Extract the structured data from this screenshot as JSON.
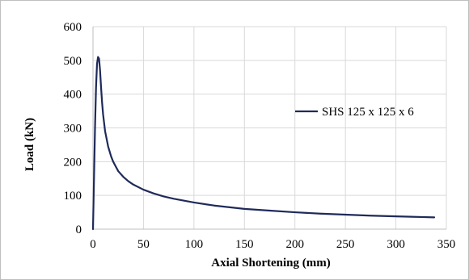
{
  "chart_data": {
    "type": "line",
    "title": "",
    "xlabel": "Axial Shortening (mm)",
    "ylabel": "Load (kN)",
    "xlim": [
      0,
      350
    ],
    "ylim": [
      0,
      600
    ],
    "x_ticks": [
      0,
      50,
      100,
      150,
      200,
      250,
      300,
      350
    ],
    "y_ticks": [
      0,
      100,
      200,
      300,
      400,
      500,
      600
    ],
    "x_tick_labels": [
      "0",
      "50",
      "100",
      "150",
      "200",
      "250",
      "300",
      "350"
    ],
    "y_tick_labels": [
      "0",
      "100",
      "200",
      "300",
      "400",
      "500",
      "600"
    ],
    "grid": true,
    "legend_position": "right",
    "series": [
      {
        "name": "SHS 125 x 125 x 6",
        "color": "#1f2a5a",
        "x": [
          0,
          1,
          2,
          3,
          4,
          5,
          6,
          7,
          8,
          9,
          10,
          12,
          15,
          18,
          20,
          25,
          30,
          35,
          40,
          50,
          60,
          70,
          80,
          100,
          120,
          150,
          175,
          200,
          225,
          250,
          275,
          300,
          325,
          338
        ],
        "y": [
          0,
          150,
          300,
          420,
          490,
          510,
          505,
          470,
          420,
          375,
          340,
          290,
          245,
          215,
          200,
          172,
          155,
          142,
          132,
          117,
          106,
          97,
          90,
          79,
          70,
          60,
          55,
          50,
          46,
          43,
          40,
          38,
          36,
          35
        ]
      }
    ]
  }
}
